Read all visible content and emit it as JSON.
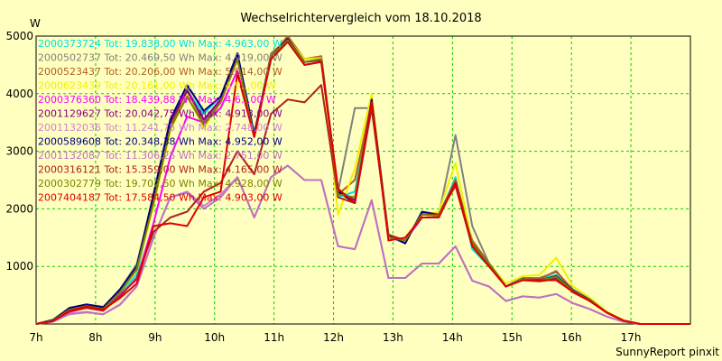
{
  "chart_data": {
    "type": "line",
    "title": "Wechselrichtervergleich vom 18.10.2018",
    "ylabel": "W",
    "xlabel": "",
    "footer": "SunnyReport pinxit",
    "xlim": [
      7,
      18
    ],
    "ylim": [
      0,
      5000
    ],
    "yticks": [
      1000,
      2000,
      3000,
      4000,
      5000
    ],
    "xticks": [
      "7h",
      "8h",
      "9h",
      "10h",
      "11h",
      "12h",
      "13h",
      "14h",
      "15h",
      "16h",
      "17h"
    ],
    "grid": true,
    "legend_position": "top-left",
    "series": [
      {
        "name": "2000373724",
        "label": "2000373724 Tot: 19.838,00 Wh Max: 4.963,00 W",
        "color": "#00e0e0",
        "values": [
          0,
          40,
          230,
          300,
          230,
          520,
          860,
          2100,
          3400,
          4050,
          3650,
          3950,
          4600,
          3300,
          4600,
          4900,
          4500,
          4550,
          2200,
          2300,
          3850,
          1500,
          1450,
          1850,
          1850,
          2550,
          1300,
          1000,
          650,
          800,
          780,
          850,
          600,
          400,
          200,
          60,
          0,
          0,
          0,
          0
        ]
      },
      {
        "name": "2000502737",
        "label": "2000502737 Tot: 20.469,50 Wh Max: 4.919,00 W",
        "color": "#808080",
        "values": [
          0,
          70,
          280,
          340,
          300,
          600,
          1040,
          2200,
          3500,
          4100,
          3500,
          3900,
          4700,
          3250,
          4700,
          4950,
          4600,
          4650,
          2300,
          3750,
          3750,
          1520,
          1400,
          1950,
          1900,
          3280,
          1700,
          1050,
          650,
          800,
          800,
          900,
          600,
          430,
          200,
          60,
          0,
          0,
          0,
          0
        ]
      },
      {
        "name": "2000523437",
        "label": "2000523437 Tot: 20.206,00 Wh Max: 5.014,00 W",
        "color": "#b06020",
        "values": [
          0,
          70,
          270,
          330,
          290,
          580,
          990,
          2150,
          3450,
          4000,
          3450,
          3850,
          4650,
          3250,
          4650,
          5000,
          4600,
          4650,
          2250,
          2500,
          3850,
          1550,
          1450,
          1920,
          1900,
          2500,
          1450,
          1050,
          650,
          790,
          780,
          920,
          580,
          420,
          200,
          60,
          0,
          0,
          0,
          0
        ]
      },
      {
        "name": "2000623439",
        "label": "2000623439 Tot: 20.161,00 Wh Max: 4.9..,00 W",
        "color": "#f0f000",
        "values": [
          0,
          60,
          240,
          310,
          260,
          550,
          930,
          2050,
          3350,
          4000,
          3400,
          3850,
          4600,
          3250,
          4650,
          4950,
          4600,
          4620,
          1900,
          2700,
          4000,
          1520,
          1450,
          1900,
          1950,
          2800,
          1400,
          1050,
          700,
          830,
          850,
          1150,
          650,
          460,
          220,
          70,
          0,
          0,
          0,
          0
        ]
      },
      {
        "name": "2000376360",
        "label": "2000376360 Tot: 18.439,88 Wh Max: 4.6..,00 W",
        "color": "#ff00ff",
        "values": [
          0,
          50,
          210,
          280,
          230,
          510,
          770,
          1750,
          2900,
          3600,
          3500,
          3750,
          4400,
          3250,
          4600,
          4950,
          4500,
          4550,
          2350,
          2100,
          3800,
          1500,
          1450,
          1850,
          1850,
          2450,
          1350,
          1000,
          650,
          780,
          760,
          800,
          560,
          400,
          200,
          60,
          0,
          0,
          0,
          0
        ]
      },
      {
        "name": "2001129627",
        "label": "2001129627 Tot: 20.042,75 Wh Max: 4.913,00 W",
        "color": "#8b0080",
        "values": [
          0,
          60,
          250,
          320,
          270,
          560,
          950,
          2150,
          3500,
          4050,
          3550,
          3900,
          4650,
          3300,
          4650,
          4950,
          4550,
          4580,
          2300,
          2150,
          3850,
          1500,
          1450,
          1900,
          1880,
          2450,
          1400,
          1050,
          650,
          780,
          760,
          800,
          570,
          410,
          200,
          60,
          0,
          0,
          0,
          0
        ]
      },
      {
        "name": "2001132036",
        "label": "2001132036 Tot: 11.241,75 Wh Max: 2.748,00 W",
        "color": "#d080d0",
        "values": [
          0,
          40,
          170,
          200,
          170,
          330,
          650,
          1500,
          2200,
          2300,
          2050,
          2250,
          2550,
          1850,
          2550,
          2750,
          2500,
          2500,
          1350,
          1300,
          2150,
          800,
          800,
          1050,
          1050,
          1350,
          750,
          650,
          400,
          480,
          460,
          520,
          360,
          260,
          130,
          40,
          0,
          0,
          0,
          0
        ]
      },
      {
        "name": "2000589608",
        "label": "2000589608 Tot: 20.348,38 Wh Max: 4.952,00 W",
        "color": "#000080",
        "values": [
          0,
          70,
          280,
          340,
          290,
          600,
          1000,
          2250,
          3550,
          4150,
          3700,
          3950,
          4700,
          3300,
          4650,
          4950,
          4550,
          4600,
          2300,
          2100,
          3900,
          1550,
          1400,
          1950,
          1900,
          2450,
          1400,
          1050,
          650,
          780,
          760,
          830,
          580,
          420,
          200,
          60,
          0,
          0,
          0,
          0
        ]
      },
      {
        "name": "2001132087",
        "label": "2001132087 Tot: 11.306,25 Wh Max: 2.751,00 W",
        "color": "#c070c0",
        "values": [
          0,
          40,
          180,
          210,
          170,
          340,
          660,
          1500,
          2200,
          2280,
          2000,
          2200,
          2550,
          1850,
          2550,
          2750,
          2500,
          2500,
          1350,
          1300,
          2150,
          800,
          800,
          1050,
          1050,
          1350,
          750,
          650,
          400,
          480,
          460,
          520,
          360,
          260,
          130,
          40,
          0,
          0,
          0,
          0
        ]
      },
      {
        "name": "2000316121",
        "label": "2000316121 Tot: 15.359,00 Wh Max: 4.165,00 W",
        "color": "#b02020",
        "values": [
          0,
          50,
          220,
          280,
          230,
          480,
          800,
          1600,
          1850,
          1950,
          2300,
          2450,
          3000,
          2600,
          3650,
          3900,
          3850,
          4150,
          2200,
          2100,
          3750,
          1550,
          1450,
          1900,
          1900,
          2400,
          1350,
          1050,
          650,
          760,
          740,
          780,
          550,
          400,
          200,
          60,
          0,
          0,
          0,
          0
        ]
      },
      {
        "name": "2000302779",
        "label": "2000302779 Tot: 19.702,50 Wh Max: 4.928,00 W",
        "color": "#808000",
        "values": [
          0,
          60,
          250,
          310,
          260,
          550,
          960,
          2100,
          3400,
          3950,
          3450,
          3850,
          4600,
          3250,
          4650,
          4930,
          4550,
          4600,
          2250,
          2200,
          3850,
          1500,
          1450,
          1900,
          1880,
          2450,
          1400,
          1050,
          650,
          780,
          760,
          820,
          570,
          410,
          200,
          60,
          0,
          0,
          0,
          0
        ]
      },
      {
        "name": "2007404187",
        "label": "2007404187 Tot: 17.584,50 Wh Max: 4.903,00 W",
        "color": "#e00000",
        "values": [
          0,
          50,
          230,
          300,
          250,
          450,
          700,
          1700,
          1750,
          1700,
          2200,
          2300,
          4350,
          3250,
          4600,
          4900,
          4500,
          4550,
          2350,
          2100,
          3850,
          1450,
          1500,
          1850,
          1850,
          2450,
          1350,
          1000,
          650,
          760,
          760,
          760,
          560,
          400,
          200,
          60,
          0,
          0,
          0,
          0
        ]
      }
    ]
  }
}
